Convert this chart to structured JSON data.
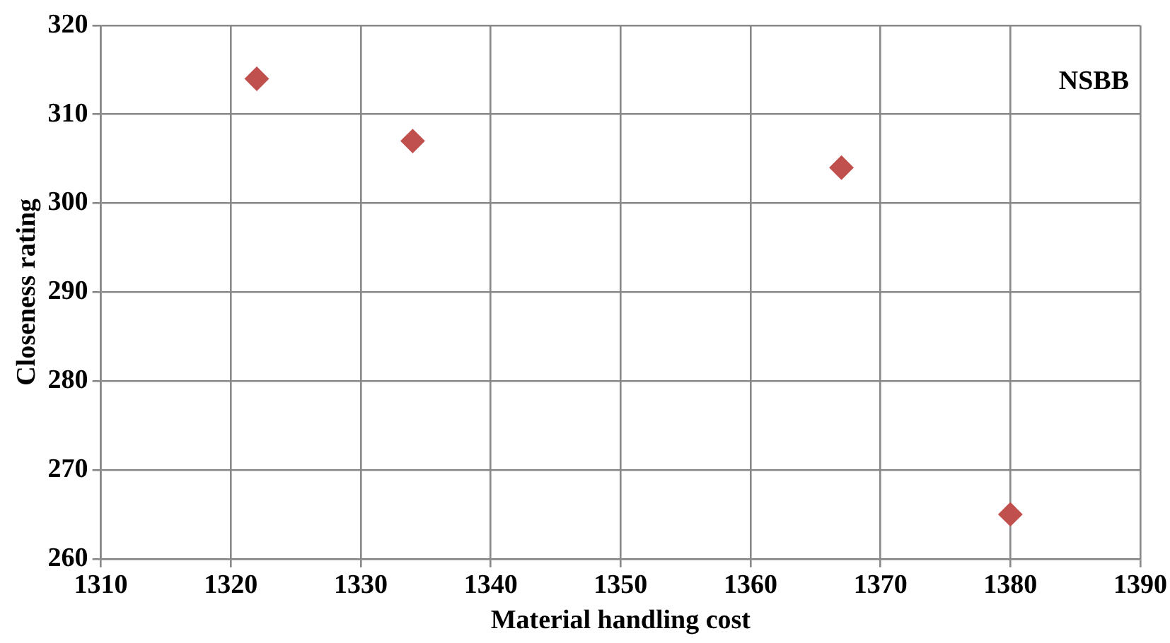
{
  "chart_data": {
    "type": "scatter",
    "xlabel": "Material handling cost",
    "ylabel": "Closeness rating",
    "annotations": [
      "NSBB"
    ],
    "x": [
      1322,
      1334,
      1367,
      1380
    ],
    "values": [
      314,
      307,
      304,
      265
    ],
    "color": "#c0504d",
    "marker": "diamond",
    "xlim": [
      1310,
      1390
    ],
    "xticks": [
      1310,
      1320,
      1330,
      1340,
      1350,
      1360,
      1370,
      1380,
      1390
    ],
    "ylim": [
      260,
      320
    ],
    "yticks": [
      260,
      270,
      280,
      290,
      300,
      310,
      320
    ],
    "grid": true
  }
}
